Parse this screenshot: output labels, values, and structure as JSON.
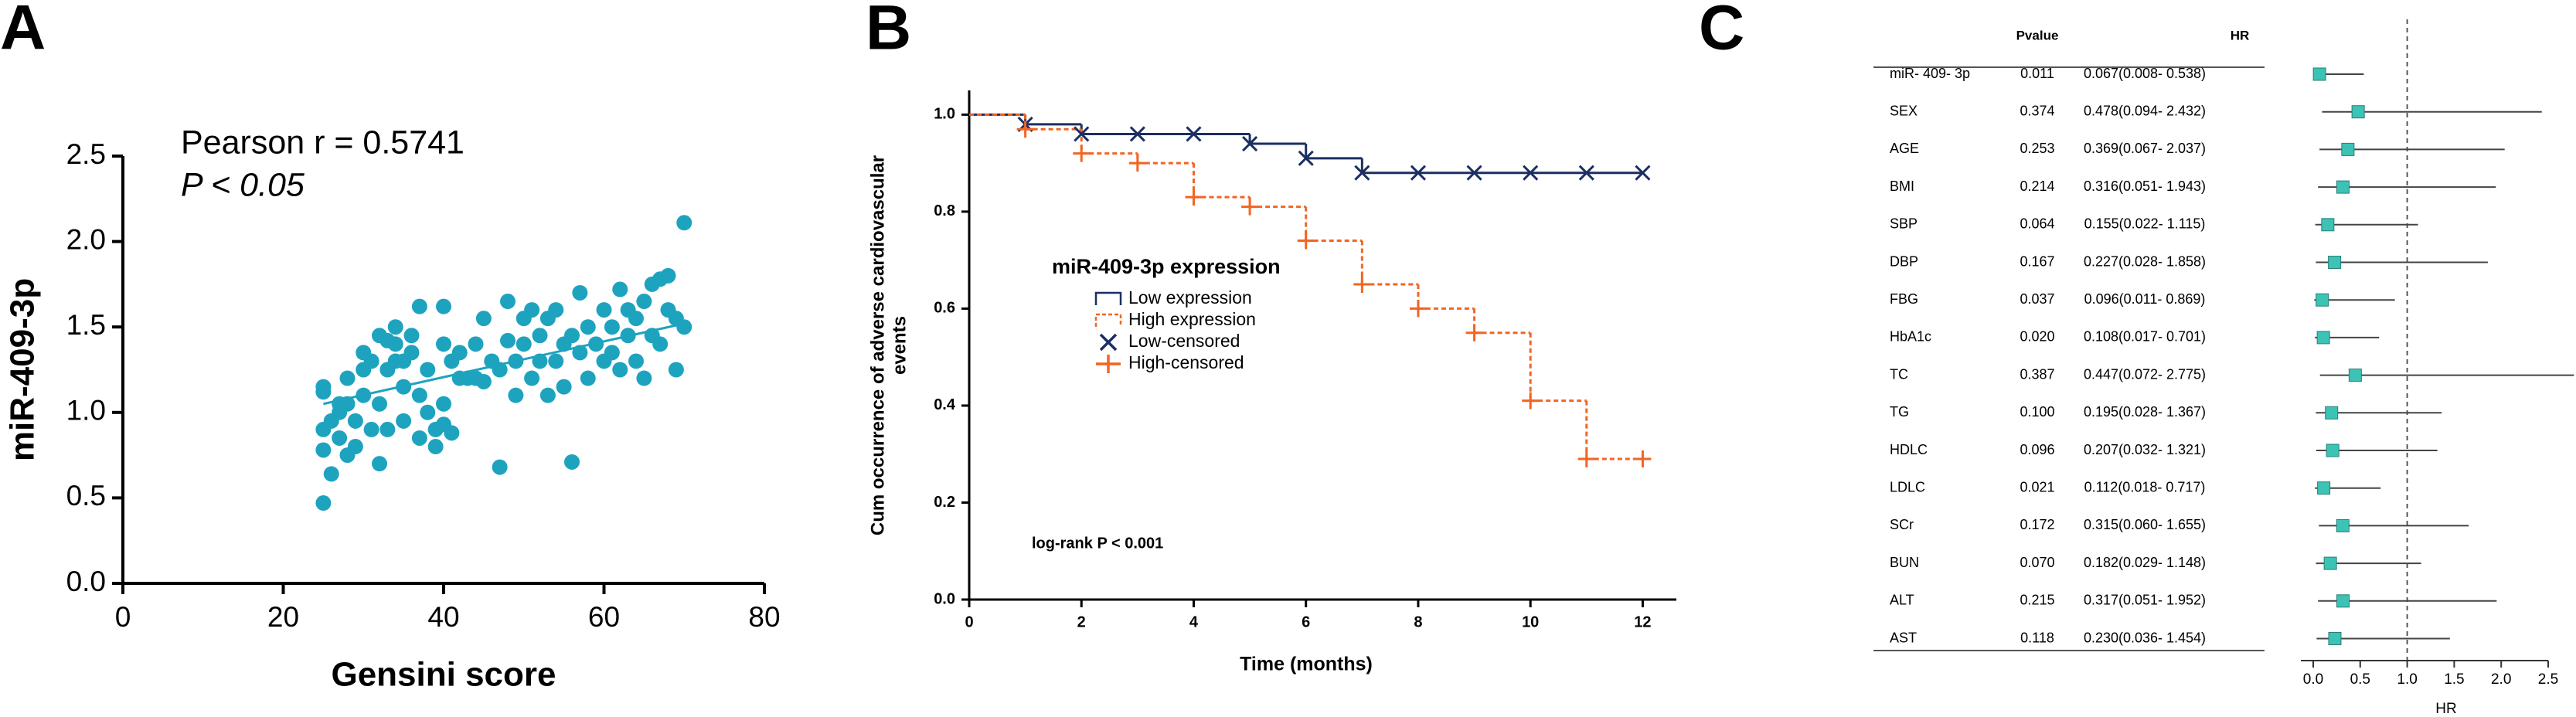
{
  "chart_data": [
    {
      "type": "scatter",
      "panel_label": "A",
      "annotations": [
        "Pearson r = 0.5741",
        "P < 0.05"
      ],
      "x_label": "Gensini score",
      "y_label": "miR-409-3p",
      "color": "#1ea3bf",
      "x": [
        25,
        25,
        25,
        25,
        25,
        26,
        26,
        27,
        27,
        27,
        28,
        28,
        28,
        29,
        29,
        30,
        30,
        30,
        31,
        31,
        32,
        32,
        32,
        33,
        33,
        33,
        34,
        34,
        34,
        35,
        35,
        35,
        36,
        36,
        37,
        37,
        37,
        38,
        38,
        39,
        39,
        40,
        40,
        40,
        40,
        41,
        41,
        42,
        42,
        43,
        44,
        44,
        45,
        45,
        46,
        47,
        47,
        48,
        48,
        49,
        49,
        50,
        50,
        51,
        51,
        52,
        52,
        53,
        53,
        54,
        54,
        55,
        55,
        56,
        56,
        57,
        57,
        58,
        58,
        59,
        60,
        60,
        61,
        61,
        62,
        62,
        63,
        63,
        64,
        64,
        65,
        65,
        66,
        66,
        67,
        67,
        68,
        68,
        69,
        69,
        70,
        70
      ],
      "y": [
        0.47,
        0.78,
        0.9,
        1.12,
        1.15,
        0.64,
        0.95,
        1.0,
        0.85,
        1.05,
        0.75,
        1.05,
        1.2,
        0.95,
        0.8,
        1.1,
        1.25,
        1.35,
        0.9,
        1.3,
        1.45,
        1.05,
        0.7,
        0.9,
        1.25,
        1.42,
        1.4,
        1.5,
        1.3,
        0.95,
        1.15,
        1.3,
        1.35,
        1.45,
        1.62,
        1.1,
        0.85,
        1.25,
        1.0,
        0.9,
        0.8,
        1.62,
        1.4,
        1.05,
        0.93,
        1.3,
        0.88,
        1.2,
        1.35,
        1.2,
        1.4,
        1.2,
        1.18,
        1.55,
        1.3,
        0.68,
        1.25,
        1.42,
        1.65,
        1.1,
        1.3,
        1.4,
        1.55,
        1.6,
        1.2,
        1.45,
        1.3,
        1.1,
        1.55,
        1.6,
        1.3,
        1.4,
        1.15,
        0.71,
        1.45,
        1.35,
        1.7,
        1.5,
        1.2,
        1.4,
        1.6,
        1.3,
        1.5,
        1.35,
        1.72,
        1.25,
        1.45,
        1.6,
        1.3,
        1.55,
        1.65,
        1.2,
        1.45,
        1.75,
        1.4,
        1.78,
        1.8,
        1.6,
        1.55,
        1.25,
        1.5,
        2.11
      ],
      "fit": {
        "x": [
          25,
          70
        ],
        "y": [
          1.05,
          1.52
        ]
      },
      "xlim": [
        0,
        80
      ],
      "xticks": [
        0,
        20,
        40,
        60,
        80
      ],
      "ylim": [
        0,
        2.5
      ],
      "yticks": [
        {
          "value": 0,
          "label": "0.0"
        },
        0.5,
        {
          "value": 1,
          "label": "1.0"
        },
        1.5,
        {
          "value": 2,
          "label": "2.0"
        },
        2.5
      ]
    },
    {
      "type": "km",
      "panel_label": "B",
      "x_label": "Time (months)",
      "y_label": [
        "Cum occurrence of adverse cardiovascular",
        "events"
      ],
      "legend_title": "miR-409-3p expression",
      "annotation": "log-rank P < 0.001",
      "series": [
        {
          "name": "Low expression",
          "color": "#1b2f63",
          "style": "solid",
          "x": [
            0,
            1,
            2,
            5,
            6,
            7,
            12
          ],
          "values": [
            1.0,
            0.98,
            0.96,
            0.94,
            0.91,
            0.88,
            0.88
          ]
        },
        {
          "name": "High expression",
          "color": "#f26522",
          "style": "dashed",
          "x": [
            0,
            1,
            2,
            3,
            4,
            5,
            6,
            7,
            8,
            9,
            10,
            11,
            12
          ],
          "values": [
            1.0,
            0.97,
            0.92,
            0.9,
            0.83,
            0.81,
            0.74,
            0.65,
            0.6,
            0.55,
            0.41,
            0.29,
            0.29
          ]
        },
        {
          "name": "Low-censored",
          "color": "#1b2f63",
          "marker": "x",
          "x": [
            1,
            2,
            3,
            4,
            5,
            6,
            7,
            8,
            9,
            10,
            11,
            12
          ],
          "values": [
            0.98,
            0.96,
            0.96,
            0.96,
            0.94,
            0.91,
            0.88,
            0.88,
            0.88,
            0.88,
            0.88,
            0.88
          ]
        },
        {
          "name": "High-censored",
          "color": "#f26522",
          "marker": "+",
          "x": [
            1,
            2,
            3,
            4,
            5,
            6,
            7,
            8,
            9,
            10,
            11,
            12
          ],
          "values": [
            0.97,
            0.92,
            0.9,
            0.83,
            0.81,
            0.74,
            0.65,
            0.6,
            0.55,
            0.41,
            0.29,
            0.29
          ]
        }
      ],
      "xlim": [
        0,
        12.6
      ],
      "xticks": [
        0,
        2,
        4,
        6,
        8,
        10,
        12
      ],
      "ylim": [
        0,
        1.05
      ],
      "yticks": [
        {
          "value": 0,
          "label": "0.0"
        },
        0.2,
        0.4,
        0.6,
        0.8,
        {
          "value": 1,
          "label": "1.0"
        }
      ]
    },
    {
      "type": "forest",
      "panel_label": "C",
      "columns": [
        "Pvalue",
        "HR"
      ],
      "categories": [
        "miR- 409- 3p",
        "SEX",
        "AGE",
        "BMI",
        "SBP",
        "DBP",
        "FBG",
        "HbA1c",
        "TC",
        "TG",
        "HDLC",
        "LDLC",
        "SCr",
        "BUN",
        "ALT",
        "AST"
      ],
      "pvalues": [
        "0.011",
        "0.374",
        "0.253",
        "0.214",
        "0.064",
        "0.167",
        "0.037",
        "0.020",
        "0.387",
        "0.100",
        "0.096",
        "0.021",
        "0.172",
        "0.070",
        "0.215",
        "0.118"
      ],
      "values": [
        0.067,
        0.478,
        0.369,
        0.316,
        0.155,
        0.227,
        0.096,
        0.108,
        0.447,
        0.195,
        0.207,
        0.112,
        0.315,
        0.182,
        0.317,
        0.23
      ],
      "value_labels": [
        "0.067(0.008- 0.538)",
        "0.478(0.094- 2.432)",
        "0.369(0.067- 2.037)",
        "0.316(0.051- 1.943)",
        "0.155(0.022- 1.115)",
        "0.227(0.028- 1.858)",
        "0.096(0.011- 0.869)",
        "0.108(0.017- 0.701)",
        "0.447(0.072- 2.775)",
        "0.195(0.028- 1.367)",
        "0.207(0.032- 1.321)",
        "0.112(0.018- 0.717)",
        "0.315(0.060- 1.655)",
        "0.182(0.029- 1.148)",
        "0.317(0.051- 1.952)",
        "0.230(0.036- 1.454)"
      ],
      "lower": [
        0.008,
        0.094,
        0.067,
        0.051,
        0.022,
        0.028,
        0.011,
        0.017,
        0.072,
        0.028,
        0.032,
        0.018,
        0.06,
        0.029,
        0.051,
        0.036
      ],
      "upper": [
        0.538,
        2.432,
        2.037,
        1.943,
        1.115,
        1.858,
        0.869,
        0.701,
        2.775,
        1.367,
        1.321,
        0.717,
        1.655,
        1.148,
        1.952,
        1.454
      ],
      "color": "#3cc3b5",
      "ref_line": 1,
      "x_label": "HR",
      "xlim": [
        0,
        2.5
      ],
      "xticks": [
        {
          "value": 0,
          "label": "0.0"
        },
        0.5,
        {
          "value": 1,
          "label": "1.0"
        },
        1.5,
        {
          "value": 2,
          "label": "2.0"
        },
        2.5
      ]
    }
  ]
}
